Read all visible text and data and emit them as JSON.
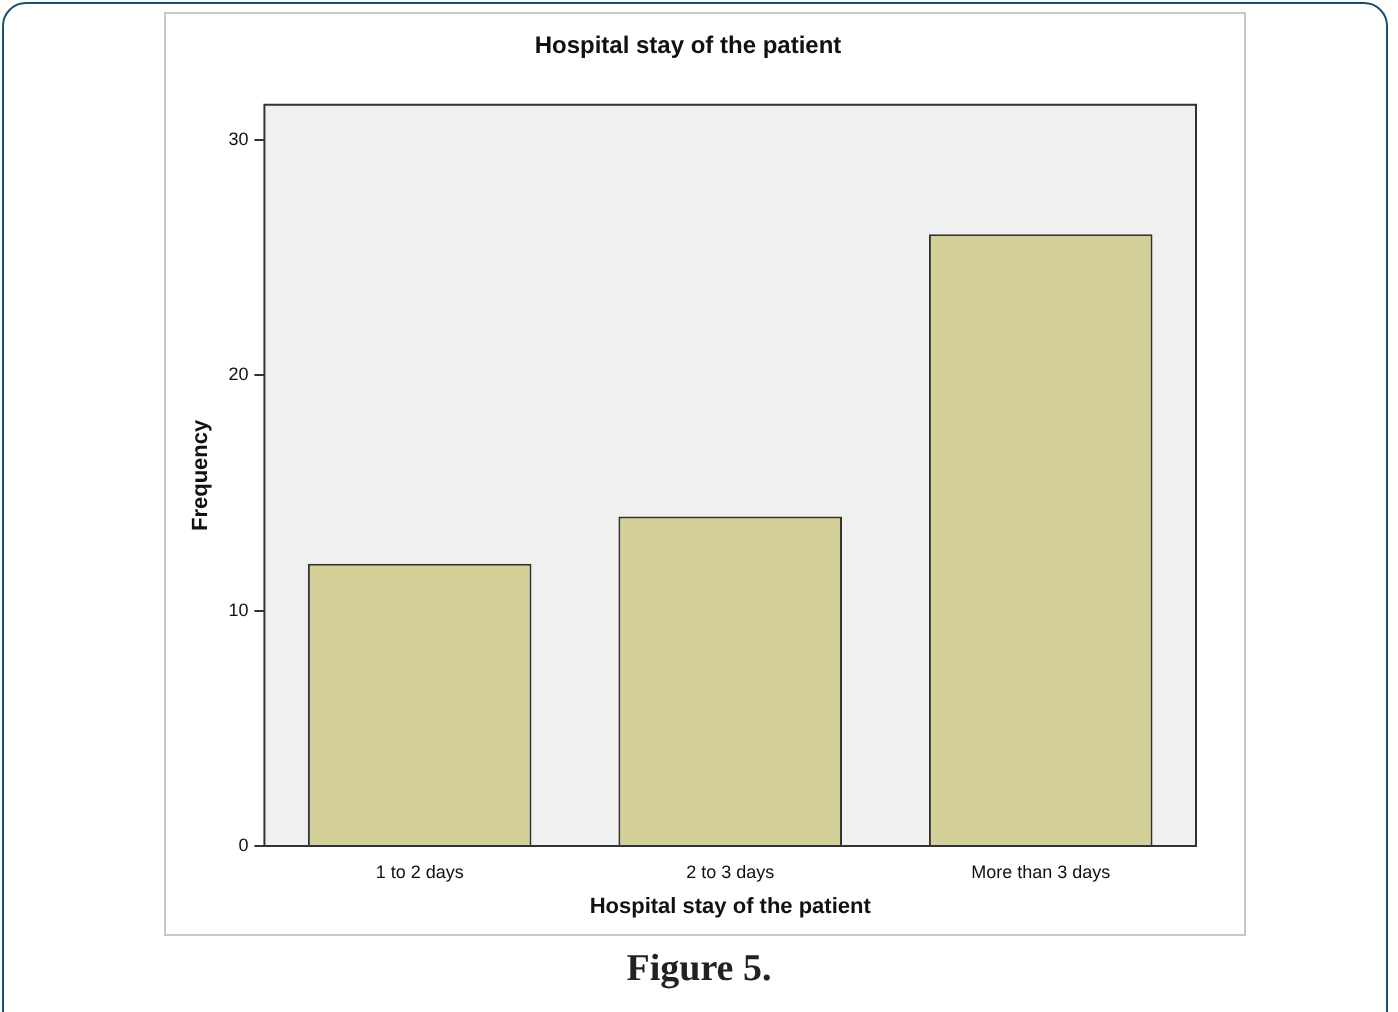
{
  "chart_data": {
    "type": "bar",
    "title": "Hospital stay of the patient",
    "xlabel": "Hospital stay of the patient",
    "ylabel": "Frequency",
    "categories": [
      "1 to 2 days",
      "2 to 3 days",
      "More than 3 days"
    ],
    "values": [
      12,
      14,
      26
    ],
    "color": "#d4d09a",
    "ylim": [
      0,
      31.5
    ],
    "yticks": [
      0,
      10,
      20,
      30
    ],
    "grid": false,
    "legend": false,
    "annotations": [
      "Figure 5."
    ]
  }
}
